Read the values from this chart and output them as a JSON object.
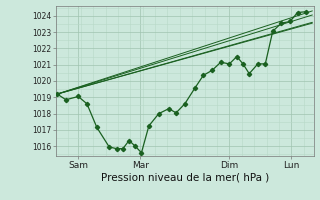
{
  "title": "",
  "xlabel": "Pression niveau de la mer( hPa )",
  "bg_color": "#cce8dc",
  "grid_color_major": "#a0c4b0",
  "grid_color_minor": "#b8d8c8",
  "line_color": "#1a6020",
  "ylim": [
    1015.4,
    1024.6
  ],
  "xlim": [
    0.0,
    10.4
  ],
  "xtick_positions": [
    0.9,
    3.4,
    7.0,
    9.5
  ],
  "xtick_labels": [
    "Sam",
    "Mar",
    "Dim",
    "Lun"
  ],
  "ytick_positions": [
    1016,
    1017,
    1018,
    1019,
    1020,
    1021,
    1022,
    1023,
    1024
  ],
  "forecast_lines": [
    [
      [
        0.05,
        1019.2
      ],
      [
        10.35,
        1024.3
      ]
    ],
    [
      [
        0.05,
        1019.2
      ],
      [
        10.35,
        1023.6
      ]
    ],
    [
      [
        0.05,
        1019.2
      ],
      [
        10.35,
        1023.55
      ]
    ],
    [
      [
        0.05,
        1019.2
      ],
      [
        10.35,
        1024.05
      ]
    ]
  ],
  "main_series": [
    [
      0.05,
      1019.2
    ],
    [
      0.4,
      1018.85
    ],
    [
      0.9,
      1019.05
    ],
    [
      1.25,
      1018.6
    ],
    [
      1.65,
      1017.15
    ],
    [
      2.15,
      1015.95
    ],
    [
      2.45,
      1015.85
    ],
    [
      2.7,
      1015.85
    ],
    [
      2.95,
      1016.35
    ],
    [
      3.2,
      1016.0
    ],
    [
      3.45,
      1015.6
    ],
    [
      3.75,
      1017.25
    ],
    [
      4.15,
      1018.0
    ],
    [
      4.55,
      1018.3
    ],
    [
      4.85,
      1018.05
    ],
    [
      5.2,
      1018.6
    ],
    [
      5.6,
      1019.55
    ],
    [
      5.95,
      1020.35
    ],
    [
      6.3,
      1020.65
    ],
    [
      6.65,
      1021.15
    ],
    [
      7.0,
      1021.05
    ],
    [
      7.3,
      1021.5
    ],
    [
      7.55,
      1021.05
    ],
    [
      7.8,
      1020.45
    ],
    [
      8.15,
      1021.05
    ],
    [
      8.45,
      1021.05
    ],
    [
      8.75,
      1023.05
    ],
    [
      9.1,
      1023.55
    ],
    [
      9.45,
      1023.65
    ],
    [
      9.75,
      1024.2
    ],
    [
      10.1,
      1024.25
    ]
  ]
}
